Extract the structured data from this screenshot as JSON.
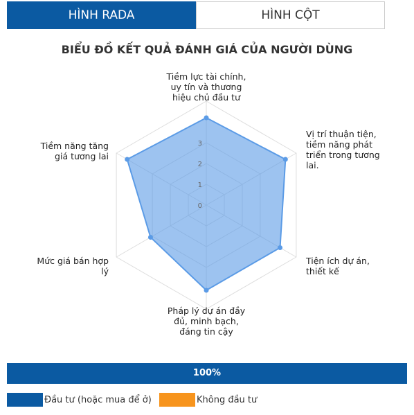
{
  "tabs": [
    "HÌNH RADA",
    "HÌNH CỘT"
  ],
  "chart_data": {
    "type": "radar",
    "title": "BIỂU ĐỒ KẾT QUẢ ĐÁNH GIÁ CỦA NGƯỜI DÙNG",
    "categories": [
      "Tiềm lực tài chính, uy tín và thương hiệu chủ đầu tư",
      "Vị trí thuận tiện, tiềm năng phát triển trong tương lai.",
      "Tiện ích dự án, thiết kế",
      "Pháp lý dự án đầy đủ, minh bạch, đáng tin cậy",
      "Mức giá bán hợp lý",
      "Tiềm năng tăng giá tương lai"
    ],
    "values": [
      4.2,
      4.4,
      4.1,
      4.1,
      3.1,
      4.4
    ],
    "color": "#5b9be6",
    "ylim": [
      0,
      5
    ],
    "yticks": [
      0,
      1,
      2,
      3
    ],
    "grid": true
  },
  "progress": {
    "value": 100,
    "label": "100%",
    "color": "#0b5aa2"
  },
  "legend": [
    {
      "name": "Đầu tư (hoặc mua để ở)",
      "color": "#0b5aa2"
    },
    {
      "name": "Không đầu tư",
      "color": "#f7941d"
    }
  ]
}
